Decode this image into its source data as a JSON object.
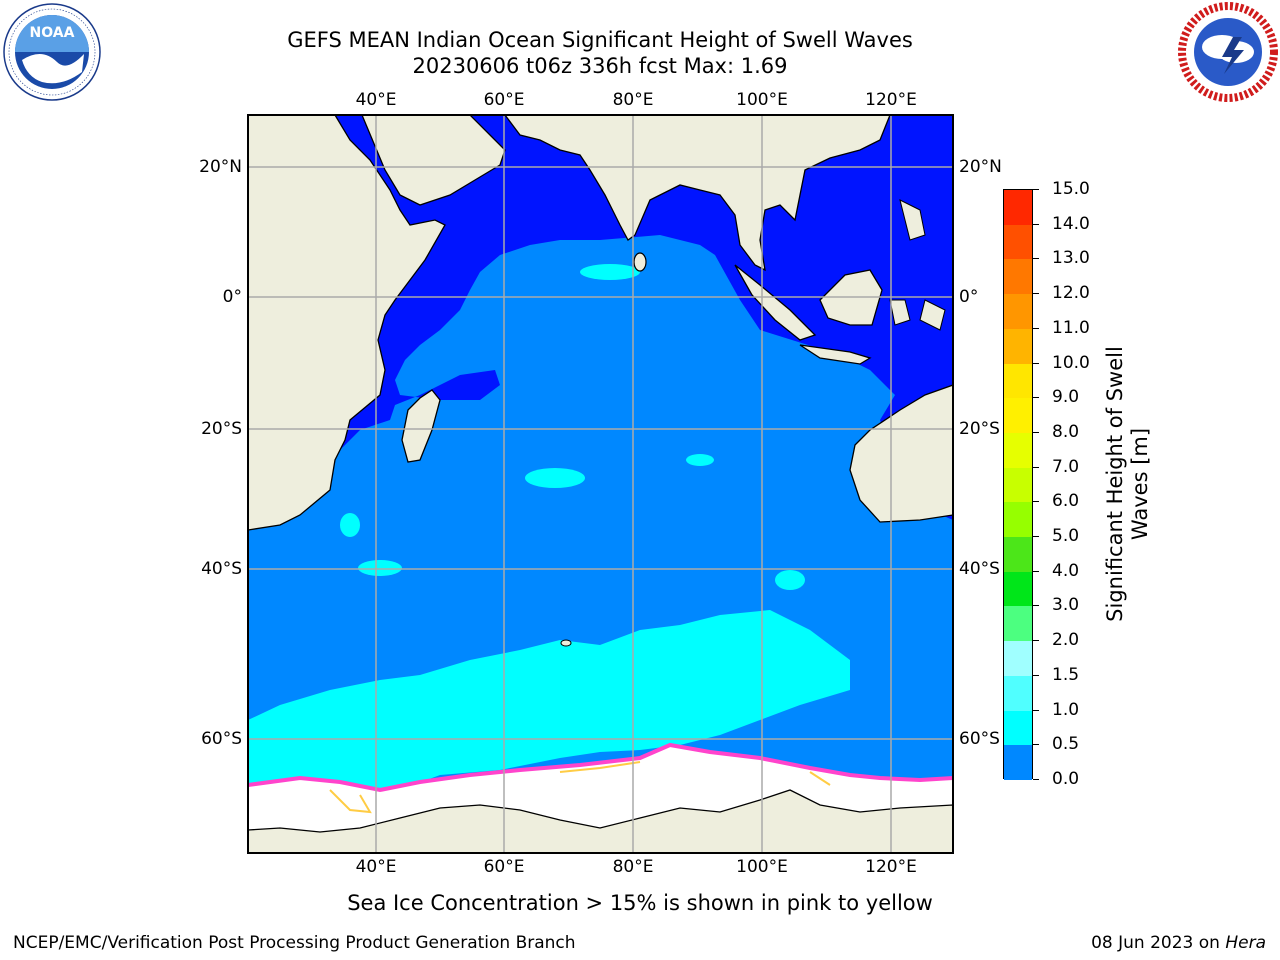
{
  "header": {
    "title_line1": "GEFS MEAN Indian Ocean Significant Height of Swell Waves",
    "title_line2": "20230606 t06z 336h fcst   Max: 1.69"
  },
  "logos": {
    "left": {
      "name": "NOAA",
      "ring_text": "NATIONAL OCEANIC AND ATMOSPHERIC ADMINISTRATION · U.S. DEPARTMENT OF COMMERCE"
    },
    "right": {
      "name": "NATIONAL WEATHER SERVICE"
    }
  },
  "map": {
    "lon_ticks": [
      "40°E",
      "60°E",
      "80°E",
      "100°E",
      "120°E"
    ],
    "lat_ticks_left": [
      "20°N",
      "0°",
      "20°S",
      "40°S",
      "60°S"
    ],
    "lat_ticks_right": [
      "20°N",
      "0°",
      "20°S",
      "40°S",
      "60°S"
    ],
    "colors": {
      "land": "#eeeedd",
      "ocean_0_05": "#0014ff",
      "ocean_05_10": "#0088ff",
      "ocean_10_15": "#00ffff",
      "ocean_15_20": "#44ffff",
      "ice": "#ffffff",
      "ice_edge_pink": "#ff44cc",
      "ice_edge_yellow": "#ffcc44",
      "grid": "#aaaaaa"
    }
  },
  "colorbar": {
    "title_line1": "Significant Height of Swell",
    "title_line2": "Waves [m]",
    "labels": [
      "15.0",
      "14.0",
      "13.0",
      "12.0",
      "11.0",
      "10.0",
      "9.0",
      "8.0",
      "7.0",
      "6.0",
      "5.0",
      "4.0",
      "3.0",
      "2.0",
      "1.5",
      "1.0",
      "0.5",
      "0.0"
    ],
    "segment_colors": [
      "#ff0000",
      "#ff2800",
      "#ff5000",
      "#ff7800",
      "#ff9600",
      "#ffb400",
      "#ffe600",
      "#fff000",
      "#e6ff00",
      "#c8ff00",
      "#96ff00",
      "#4ce619",
      "#00e619",
      "#4cff80",
      "#a0ffff",
      "#50ffff",
      "#00ffff",
      "#0088ff",
      "#0014ff"
    ]
  },
  "footer": {
    "note": "Sea Ice Concentration > 15% is shown in pink to yellow",
    "left": "NCEP/EMC/Verification Post Processing Product Generation Branch",
    "right_prefix": "08 Jun 2023 on ",
    "right_host": "Hera"
  }
}
